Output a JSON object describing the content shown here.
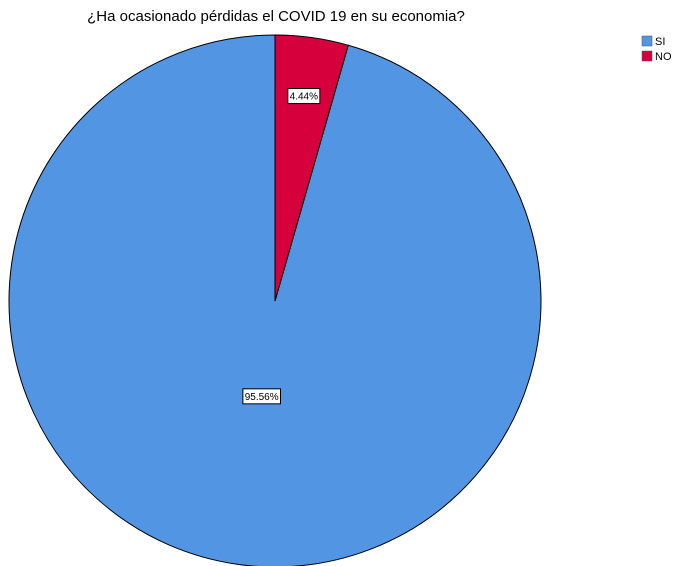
{
  "chart_data": {
    "type": "pie",
    "title": "¿Ha ocasionado pérdidas el COVID 19 en su economia?",
    "slices": [
      {
        "label": "SI",
        "value": 95.56,
        "display": "95.56%",
        "color": "#5295e3"
      },
      {
        "label": "NO",
        "value": 4.44,
        "display": "4.44%",
        "color": "#d5003c"
      }
    ],
    "legend": {
      "position": "top-right",
      "items": [
        "SI",
        "NO"
      ]
    },
    "start_angle": "12 o'clock",
    "direction": "counterclockwise"
  }
}
